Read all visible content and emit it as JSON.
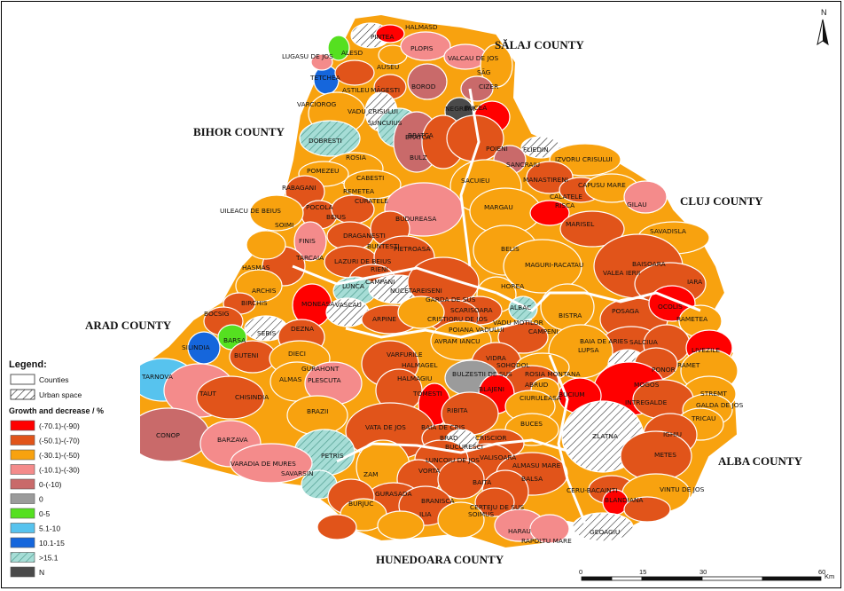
{
  "counties": {
    "salaj": "SĂLAJ COUNTY",
    "bihor": "BIHOR COUNTY",
    "cluj": "CLUJ COUNTY",
    "arad": "ARAD COUNTY",
    "alba": "ALBA COUNTY",
    "hunedoara": "HUNEDOARA COUNTY"
  },
  "north_label": "N",
  "legend": {
    "title": "Legend:",
    "counties_label": "Counties",
    "urban_label": "Urban space",
    "growth_title": "Growth and decrease / %",
    "classes": [
      {
        "label": "(-70.1)-(-90)",
        "color": "#ff0000",
        "pattern": false
      },
      {
        "label": "(-50.1)-(-70)",
        "color": "#e1541a",
        "pattern": false
      },
      {
        "label": "(-30.1)-(-50)",
        "color": "#f8a20f",
        "pattern": false
      },
      {
        "label": "(-10.1)-(-30)",
        "color": "#f48b8b",
        "pattern": false
      },
      {
        "label": "0-(-10)",
        "color": "#c96a6a",
        "pattern": false
      },
      {
        "label": "0",
        "color": "#9b9b9b",
        "pattern": false
      },
      {
        "label": "0-5",
        "color": "#55e020",
        "pattern": false
      },
      {
        "label": "5.1-10",
        "color": "#57c3ee",
        "pattern": false
      },
      {
        "label": "10.1-15",
        "color": "#1566dc",
        "pattern": false
      },
      {
        "label": ">15.1",
        "color": "#a6ddd6",
        "pattern": true
      },
      {
        "label": "N",
        "color": "#4a4a4a",
        "pattern": false
      }
    ]
  },
  "scale": {
    "ticks": [
      "0",
      "15",
      "30",
      "60"
    ],
    "unit": "Km"
  },
  "communes": [
    {
      "name": "HALMASD"
    },
    {
      "name": "PLOPIS"
    },
    {
      "name": "VALCAU DE JOS"
    },
    {
      "name": "SĂG"
    },
    {
      "name": "CIZER"
    },
    {
      "name": "LUGASU DE JOS"
    },
    {
      "name": "TETCHEA"
    },
    {
      "name": "AUSEU"
    },
    {
      "name": "ASTILEU"
    },
    {
      "name": "MĂGESTI"
    },
    {
      "name": "BOROD"
    },
    {
      "name": "NEGRENI"
    },
    {
      "name": "BUCEA"
    },
    {
      "name": "VARCIOROG"
    },
    {
      "name": "VADU CRISULUI"
    },
    {
      "name": "SUNCUIUS"
    },
    {
      "name": "BRATCA"
    },
    {
      "name": "DOBRESTI"
    },
    {
      "name": "POIENI"
    },
    {
      "name": "FLIEDIN"
    },
    {
      "name": "IZVORU CRISULUI"
    },
    {
      "name": "SANCRAIU"
    },
    {
      "name": "ROSIA"
    },
    {
      "name": "BULZ"
    },
    {
      "name": "POMEZEU"
    },
    {
      "name": "CABESTI"
    },
    {
      "name": "SACUIEU"
    },
    {
      "name": "MANASTIRENI"
    },
    {
      "name": "CAPUSU MARE"
    },
    {
      "name": "RABAGANI"
    },
    {
      "name": "REMETEA"
    },
    {
      "name": "CALATELE"
    },
    {
      "name": "GILAU"
    },
    {
      "name": "CURATELE"
    },
    {
      "name": "MARGAU"
    },
    {
      "name": "RISCA"
    },
    {
      "name": "UILEACU DE BEIUS"
    },
    {
      "name": "POCOLA"
    },
    {
      "name": "BEIUS"
    },
    {
      "name": "BUDUREASA"
    },
    {
      "name": "MARISEL"
    },
    {
      "name": "SAVADISLA"
    },
    {
      "name": "SOIMI"
    },
    {
      "name": "DRAGANESTI"
    },
    {
      "name": "BUNTESTI"
    },
    {
      "name": "FINIS"
    },
    {
      "name": "BELIS"
    },
    {
      "name": "TARCAIA"
    },
    {
      "name": "PIETROASA"
    },
    {
      "name": "HASMAS"
    },
    {
      "name": "LAZURI DE BEIUS"
    },
    {
      "name": "RIENI"
    },
    {
      "name": "MAGURI-RACATAU"
    },
    {
      "name": "BAISOARA"
    },
    {
      "name": "VALEA IERII"
    },
    {
      "name": "CAMPANI"
    },
    {
      "name": "IARA"
    },
    {
      "name": "ARCHIS"
    },
    {
      "name": "LUNCA"
    },
    {
      "name": "NUCETAREISENI"
    },
    {
      "name": "HOREA"
    },
    {
      "name": "GARDA DE SUS"
    },
    {
      "name": "ALBAC"
    },
    {
      "name": "BIRCHIS"
    },
    {
      "name": "MONEASA"
    },
    {
      "name": "VASCAU"
    },
    {
      "name": "SCARISOARA"
    },
    {
      "name": "BOCSIG"
    },
    {
      "name": "ARPINE"
    },
    {
      "name": "CRISTIORU DE JOS"
    },
    {
      "name": "BISTRA"
    },
    {
      "name": "POSAGA"
    },
    {
      "name": "OCOLIS"
    },
    {
      "name": "RAMETEA"
    },
    {
      "name": "SEBIS"
    },
    {
      "name": "DEZNA"
    },
    {
      "name": "AVRAM IANCU"
    },
    {
      "name": "POIANA VADULUI"
    },
    {
      "name": "VADU MOTILOR"
    },
    {
      "name": "CAMPENI"
    },
    {
      "name": "BARSA"
    },
    {
      "name": "BAIA DE ARIES"
    },
    {
      "name": "SALCIUA"
    },
    {
      "name": "SILINDIA"
    },
    {
      "name": "BUTENI"
    },
    {
      "name": "LUPSA"
    },
    {
      "name": "LIVEZILE"
    },
    {
      "name": "DIECI"
    },
    {
      "name": "VARFURILE"
    },
    {
      "name": "VIDRA"
    },
    {
      "name": "RAMET"
    },
    {
      "name": "TARNOVA"
    },
    {
      "name": "GURAHONT"
    },
    {
      "name": "HALMAGEL"
    },
    {
      "name": "SOHODOL"
    },
    {
      "name": "PONOR"
    },
    {
      "name": "TAUT"
    },
    {
      "name": "ALMAS"
    },
    {
      "name": "PLESCUTA"
    },
    {
      "name": "HALMAGIU"
    },
    {
      "name": "BULZESTII DE SUS"
    },
    {
      "name": "ROSIA MONTANA"
    },
    {
      "name": "MOGOS"
    },
    {
      "name": "STREMT"
    },
    {
      "name": "CHISINDIA"
    },
    {
      "name": "TOMESTI"
    },
    {
      "name": "BLAJENI"
    },
    {
      "name": "ABRUD"
    },
    {
      "name": "BUCIUM"
    },
    {
      "name": "INTREGALDE"
    },
    {
      "name": "GALDA DE JOS"
    },
    {
      "name": "BRAZII"
    },
    {
      "name": "RIBITA"
    },
    {
      "name": "CIURULEASA"
    },
    {
      "name": "TRICAU"
    },
    {
      "name": "CONOP"
    },
    {
      "name": "VATA DE JOS"
    },
    {
      "name": "BAIA DE CRIS"
    },
    {
      "name": "BUCES"
    },
    {
      "name": "IGHIU"
    },
    {
      "name": "BARZAVA"
    },
    {
      "name": "PETRIS"
    },
    {
      "name": "BRAD"
    },
    {
      "name": "CRISCIOR"
    },
    {
      "name": "ZLATNA"
    },
    {
      "name": "VARADIA DE MURES"
    },
    {
      "name": "METES"
    },
    {
      "name": "BUCURESCI"
    },
    {
      "name": "SAVARSIN"
    },
    {
      "name": "ZAM"
    },
    {
      "name": "LUNCOIU DE JOS"
    },
    {
      "name": "ALMASU MARE"
    },
    {
      "name": "VORTA"
    },
    {
      "name": "BAITA"
    },
    {
      "name": "VALISOARA"
    },
    {
      "name": "BALSA"
    },
    {
      "name": "GURASADA"
    },
    {
      "name": "CERU-BACAINTI"
    },
    {
      "name": "VINTU DE JOS"
    },
    {
      "name": "BURJUC"
    },
    {
      "name": "BRANISCA"
    },
    {
      "name": "CERTEJU DE SUS"
    },
    {
      "name": "BLANDIANA"
    },
    {
      "name": "ILIA"
    },
    {
      "name": "SOIMUS"
    },
    {
      "name": "HARAU"
    },
    {
      "name": "GEOAGIU"
    },
    {
      "name": "RAPOLTU MARE"
    },
    {
      "name": "BRATCA"
    },
    {
      "name": "PINTEA"
    },
    {
      "name": "ALESD"
    }
  ]
}
